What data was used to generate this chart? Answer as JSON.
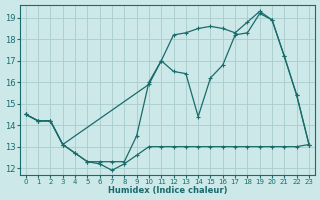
{
  "bg_color": "#cce8e8",
  "grid_color": "#aacccc",
  "line_color": "#1a6b6b",
  "xlabel": "Humidex (Indice chaleur)",
  "xlim": [
    -0.5,
    23.5
  ],
  "ylim": [
    11.7,
    19.6
  ],
  "yticks": [
    12,
    13,
    14,
    15,
    16,
    17,
    18,
    19
  ],
  "xticks": [
    0,
    1,
    2,
    3,
    4,
    5,
    6,
    7,
    8,
    9,
    10,
    11,
    12,
    13,
    14,
    15,
    16,
    17,
    18,
    19,
    20,
    21,
    22,
    23
  ],
  "line1_x": [
    0,
    1,
    2,
    3,
    4,
    5,
    6,
    7,
    8,
    9,
    10,
    11,
    12,
    13,
    14,
    15,
    16,
    17,
    18,
    19,
    20,
    21,
    22,
    23
  ],
  "line1_y": [
    14.5,
    14.2,
    14.2,
    13.1,
    12.7,
    12.3,
    12.2,
    11.9,
    12.2,
    12.6,
    13.0,
    13.0,
    13.0,
    13.0,
    13.0,
    13.0,
    13.0,
    13.0,
    13.0,
    13.0,
    13.0,
    13.0,
    13.0,
    13.1
  ],
  "line2_x": [
    0,
    1,
    2,
    3,
    4,
    5,
    6,
    7,
    8,
    9,
    10,
    11,
    12,
    13,
    14,
    15,
    16,
    17,
    18,
    19,
    20,
    21,
    22,
    23
  ],
  "line2_y": [
    14.5,
    14.2,
    14.2,
    13.1,
    12.7,
    12.3,
    12.3,
    12.3,
    12.3,
    13.5,
    16.0,
    17.0,
    16.5,
    16.4,
    14.4,
    16.2,
    16.8,
    18.2,
    18.3,
    19.2,
    18.9,
    17.2,
    15.4,
    13.1
  ],
  "line3_x": [
    0,
    1,
    2,
    3,
    10,
    11,
    12,
    13,
    14,
    15,
    16,
    17,
    18,
    19,
    20,
    21,
    22,
    23
  ],
  "line3_y": [
    14.5,
    14.2,
    14.2,
    13.1,
    15.9,
    17.0,
    18.2,
    18.3,
    18.5,
    18.6,
    18.5,
    18.3,
    18.8,
    19.3,
    18.9,
    17.2,
    15.4,
    13.1
  ]
}
